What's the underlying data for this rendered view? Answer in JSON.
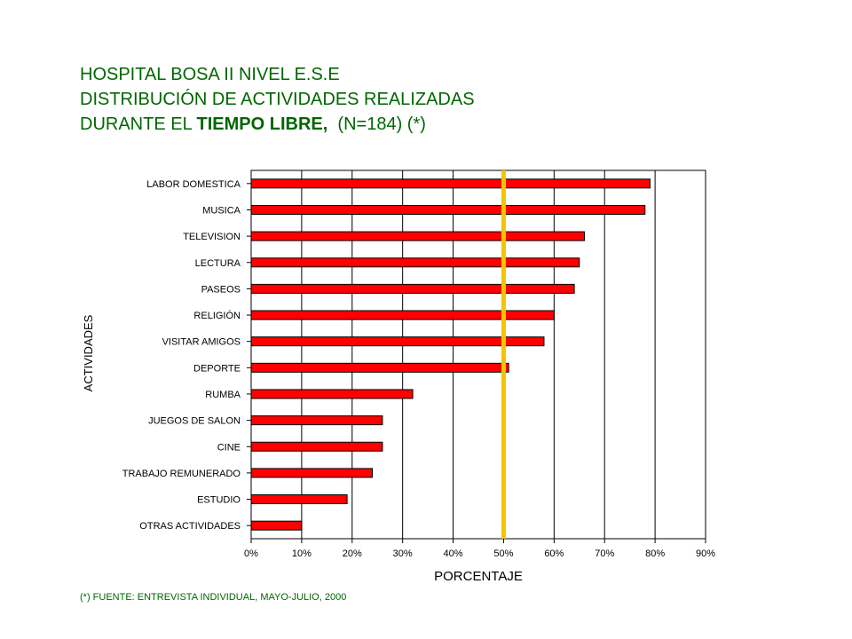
{
  "title": {
    "line1": "HOSPITAL BOSA II NIVEL E.S.E",
    "line2": "DISTRIBUCIÓN DE ACTIVIDADES REALIZADAS",
    "line3_pre": "DURANTE EL ",
    "line3_bold": "TIEMPO LIBRE,",
    "line3_post": "  (N=184) (*)"
  },
  "footnote": "(*) FUENTE: ENTREVISTA INDIVIDUAL, MAYO-JULIO, 2000",
  "colors": {
    "title": "#006600",
    "bar": "#ff0000",
    "reference_line": "#f5c400"
  },
  "chart_data": {
    "type": "bar",
    "orientation": "horizontal",
    "categories": [
      "LABOR DOMESTICA",
      "MUSICA",
      "TELEVISION",
      "LECTURA",
      "PASEOS",
      "RELIGIÓN",
      "VISITAR AMIGOS",
      "DEPORTE",
      "RUMBA",
      "JUEGOS DE SALON",
      "CINE",
      "TRABAJO REMUNERADO",
      "ESTUDIO",
      "OTRAS ACTIVIDADES"
    ],
    "values": [
      79,
      78,
      66,
      65,
      64,
      60,
      58,
      51,
      32,
      26,
      26,
      24,
      19,
      10
    ],
    "xlabel": "PORCENTAJE",
    "ylabel": "ACTIVIDADES",
    "xlim": [
      0,
      90
    ],
    "xticks": [
      "0%",
      "10%",
      "20%",
      "30%",
      "40%",
      "50%",
      "60%",
      "70%",
      "80%",
      "90%"
    ],
    "reference_line": 50,
    "grid": "vertical"
  }
}
